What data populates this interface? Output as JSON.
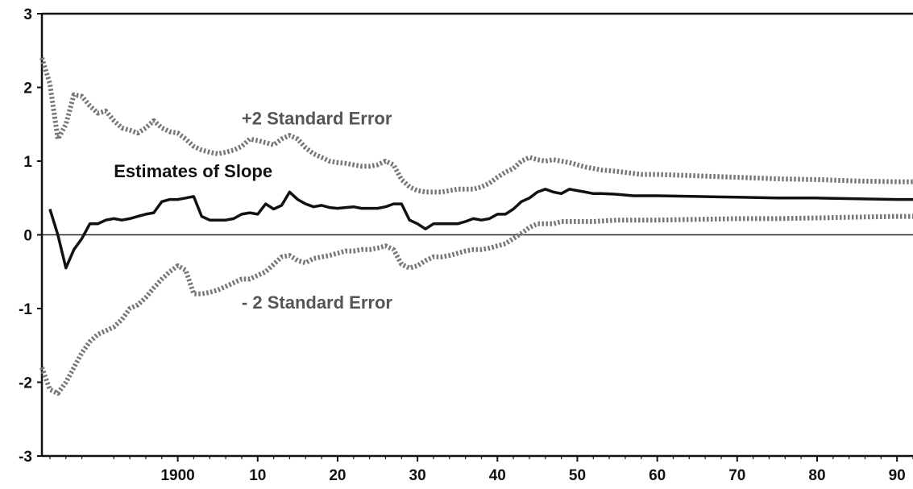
{
  "chart_data": {
    "type": "line",
    "title": "",
    "xlabel": "",
    "ylabel": "",
    "xlim": [
      1883,
      1992
    ],
    "ylim": [
      -3,
      3
    ],
    "x_ticks": [
      {
        "value": 1900,
        "label": "1900"
      },
      {
        "value": 1910,
        "label": "10"
      },
      {
        "value": 1920,
        "label": "20"
      },
      {
        "value": 1930,
        "label": "30"
      },
      {
        "value": 1940,
        "label": "40"
      },
      {
        "value": 1950,
        "label": "50"
      },
      {
        "value": 1960,
        "label": "60"
      },
      {
        "value": 1970,
        "label": "70"
      },
      {
        "value": 1980,
        "label": "80"
      },
      {
        "value": 1990,
        "label": "90"
      }
    ],
    "y_ticks": [
      {
        "value": 3,
        "label": "3"
      },
      {
        "value": 2,
        "label": "2"
      },
      {
        "value": 1,
        "label": "1"
      },
      {
        "value": 0,
        "label": "0"
      },
      {
        "value": -1,
        "label": "-1"
      },
      {
        "value": -2,
        "label": "-2"
      },
      {
        "value": -3,
        "label": "-3"
      }
    ],
    "zero_line": true,
    "grid": false,
    "annotations": [
      {
        "text": "Estimates of Slope",
        "x": 1892,
        "y": 0.78,
        "series": "slope"
      },
      {
        "text": "+2 Standard Error",
        "x": 1908,
        "y": 1.5,
        "series": "upper"
      },
      {
        "text": "- 2 Standard Error",
        "x": 1908,
        "y": -1.0,
        "series": "lower"
      }
    ],
    "series": [
      {
        "key": "slope",
        "style": "solid",
        "color": "#111111",
        "points": [
          [
            1884,
            0.35
          ],
          [
            1885,
            0.0
          ],
          [
            1886,
            -0.45
          ],
          [
            1887,
            -0.2
          ],
          [
            1888,
            -0.05
          ],
          [
            1889,
            0.15
          ],
          [
            1890,
            0.15
          ],
          [
            1891,
            0.2
          ],
          [
            1892,
            0.22
          ],
          [
            1893,
            0.2
          ],
          [
            1894,
            0.22
          ],
          [
            1895,
            0.25
          ],
          [
            1896,
            0.28
          ],
          [
            1897,
            0.3
          ],
          [
            1898,
            0.45
          ],
          [
            1899,
            0.48
          ],
          [
            1900,
            0.48
          ],
          [
            1901,
            0.5
          ],
          [
            1902,
            0.52
          ],
          [
            1903,
            0.25
          ],
          [
            1904,
            0.2
          ],
          [
            1905,
            0.2
          ],
          [
            1906,
            0.2
          ],
          [
            1907,
            0.22
          ],
          [
            1908,
            0.28
          ],
          [
            1909,
            0.3
          ],
          [
            1910,
            0.28
          ],
          [
            1911,
            0.42
          ],
          [
            1912,
            0.35
          ],
          [
            1913,
            0.4
          ],
          [
            1914,
            0.58
          ],
          [
            1915,
            0.48
          ],
          [
            1916,
            0.42
          ],
          [
            1917,
            0.38
          ],
          [
            1918,
            0.4
          ],
          [
            1919,
            0.37
          ],
          [
            1920,
            0.36
          ],
          [
            1921,
            0.37
          ],
          [
            1922,
            0.38
          ],
          [
            1923,
            0.36
          ],
          [
            1924,
            0.36
          ],
          [
            1925,
            0.36
          ],
          [
            1926,
            0.38
          ],
          [
            1927,
            0.42
          ],
          [
            1928,
            0.42
          ],
          [
            1929,
            0.2
          ],
          [
            1930,
            0.15
          ],
          [
            1931,
            0.08
          ],
          [
            1932,
            0.15
          ],
          [
            1933,
            0.15
          ],
          [
            1934,
            0.15
          ],
          [
            1935,
            0.15
          ],
          [
            1936,
            0.18
          ],
          [
            1937,
            0.22
          ],
          [
            1938,
            0.2
          ],
          [
            1939,
            0.22
          ],
          [
            1940,
            0.28
          ],
          [
            1941,
            0.28
          ],
          [
            1942,
            0.35
          ],
          [
            1943,
            0.45
          ],
          [
            1944,
            0.5
          ],
          [
            1945,
            0.58
          ],
          [
            1946,
            0.62
          ],
          [
            1947,
            0.58
          ],
          [
            1948,
            0.56
          ],
          [
            1949,
            0.62
          ],
          [
            1950,
            0.6
          ],
          [
            1951,
            0.58
          ],
          [
            1952,
            0.56
          ],
          [
            1953,
            0.56
          ],
          [
            1955,
            0.55
          ],
          [
            1957,
            0.53
          ],
          [
            1960,
            0.53
          ],
          [
            1965,
            0.52
          ],
          [
            1970,
            0.51
          ],
          [
            1975,
            0.5
          ],
          [
            1980,
            0.5
          ],
          [
            1985,
            0.49
          ],
          [
            1990,
            0.48
          ],
          [
            1992,
            0.48
          ]
        ]
      },
      {
        "key": "upper",
        "style": "dotted",
        "color": "#777777",
        "points": [
          [
            1883,
            2.4
          ],
          [
            1884,
            2.05
          ],
          [
            1885,
            1.3
          ],
          [
            1886,
            1.5
          ],
          [
            1887,
            1.9
          ],
          [
            1888,
            1.88
          ],
          [
            1889,
            1.75
          ],
          [
            1890,
            1.65
          ],
          [
            1891,
            1.68
          ],
          [
            1892,
            1.55
          ],
          [
            1893,
            1.45
          ],
          [
            1894,
            1.42
          ],
          [
            1895,
            1.38
          ],
          [
            1896,
            1.45
          ],
          [
            1897,
            1.55
          ],
          [
            1898,
            1.45
          ],
          [
            1899,
            1.4
          ],
          [
            1900,
            1.38
          ],
          [
            1901,
            1.3
          ],
          [
            1902,
            1.2
          ],
          [
            1903,
            1.15
          ],
          [
            1904,
            1.12
          ],
          [
            1905,
            1.1
          ],
          [
            1906,
            1.12
          ],
          [
            1907,
            1.15
          ],
          [
            1908,
            1.2
          ],
          [
            1909,
            1.3
          ],
          [
            1910,
            1.28
          ],
          [
            1911,
            1.25
          ],
          [
            1912,
            1.22
          ],
          [
            1913,
            1.3
          ],
          [
            1914,
            1.35
          ],
          [
            1915,
            1.3
          ],
          [
            1916,
            1.18
          ],
          [
            1917,
            1.1
          ],
          [
            1918,
            1.05
          ],
          [
            1919,
            1.0
          ],
          [
            1920,
            0.98
          ],
          [
            1921,
            0.97
          ],
          [
            1922,
            0.95
          ],
          [
            1923,
            0.93
          ],
          [
            1924,
            0.93
          ],
          [
            1925,
            0.95
          ],
          [
            1926,
            1.0
          ],
          [
            1927,
            0.95
          ],
          [
            1928,
            0.75
          ],
          [
            1929,
            0.65
          ],
          [
            1930,
            0.6
          ],
          [
            1931,
            0.58
          ],
          [
            1932,
            0.58
          ],
          [
            1933,
            0.58
          ],
          [
            1934,
            0.6
          ],
          [
            1935,
            0.62
          ],
          [
            1936,
            0.62
          ],
          [
            1937,
            0.62
          ],
          [
            1938,
            0.65
          ],
          [
            1939,
            0.7
          ],
          [
            1940,
            0.78
          ],
          [
            1941,
            0.85
          ],
          [
            1942,
            0.9
          ],
          [
            1943,
            1.0
          ],
          [
            1944,
            1.05
          ],
          [
            1945,
            1.02
          ],
          [
            1946,
            1.0
          ],
          [
            1947,
            1.02
          ],
          [
            1948,
            1.0
          ],
          [
            1949,
            0.98
          ],
          [
            1950,
            0.95
          ],
          [
            1951,
            0.92
          ],
          [
            1952,
            0.9
          ],
          [
            1953,
            0.88
          ],
          [
            1955,
            0.86
          ],
          [
            1958,
            0.82
          ],
          [
            1960,
            0.82
          ],
          [
            1965,
            0.8
          ],
          [
            1970,
            0.78
          ],
          [
            1975,
            0.76
          ],
          [
            1980,
            0.75
          ],
          [
            1985,
            0.73
          ],
          [
            1990,
            0.72
          ],
          [
            1992,
            0.72
          ]
        ]
      },
      {
        "key": "lower",
        "style": "dotted",
        "color": "#777777",
        "points": [
          [
            1883,
            -1.8
          ],
          [
            1884,
            -2.1
          ],
          [
            1885,
            -2.15
          ],
          [
            1886,
            -2.0
          ],
          [
            1887,
            -1.8
          ],
          [
            1888,
            -1.6
          ],
          [
            1889,
            -1.45
          ],
          [
            1890,
            -1.35
          ],
          [
            1891,
            -1.3
          ],
          [
            1892,
            -1.25
          ],
          [
            1893,
            -1.15
          ],
          [
            1894,
            -1.0
          ],
          [
            1895,
            -0.95
          ],
          [
            1896,
            -0.85
          ],
          [
            1897,
            -0.72
          ],
          [
            1898,
            -0.6
          ],
          [
            1899,
            -0.5
          ],
          [
            1900,
            -0.42
          ],
          [
            1901,
            -0.48
          ],
          [
            1902,
            -0.8
          ],
          [
            1903,
            -0.8
          ],
          [
            1904,
            -0.78
          ],
          [
            1905,
            -0.75
          ],
          [
            1906,
            -0.7
          ],
          [
            1907,
            -0.65
          ],
          [
            1908,
            -0.6
          ],
          [
            1909,
            -0.6
          ],
          [
            1910,
            -0.55
          ],
          [
            1911,
            -0.5
          ],
          [
            1912,
            -0.4
          ],
          [
            1913,
            -0.3
          ],
          [
            1914,
            -0.28
          ],
          [
            1915,
            -0.35
          ],
          [
            1916,
            -0.38
          ],
          [
            1917,
            -0.32
          ],
          [
            1918,
            -0.3
          ],
          [
            1919,
            -0.28
          ],
          [
            1920,
            -0.25
          ],
          [
            1921,
            -0.22
          ],
          [
            1922,
            -0.22
          ],
          [
            1923,
            -0.2
          ],
          [
            1924,
            -0.2
          ],
          [
            1925,
            -0.18
          ],
          [
            1926,
            -0.15
          ],
          [
            1927,
            -0.2
          ],
          [
            1928,
            -0.4
          ],
          [
            1929,
            -0.45
          ],
          [
            1930,
            -0.42
          ],
          [
            1931,
            -0.35
          ],
          [
            1932,
            -0.3
          ],
          [
            1933,
            -0.3
          ],
          [
            1934,
            -0.28
          ],
          [
            1935,
            -0.25
          ],
          [
            1936,
            -0.22
          ],
          [
            1937,
            -0.2
          ],
          [
            1938,
            -0.2
          ],
          [
            1939,
            -0.18
          ],
          [
            1940,
            -0.15
          ],
          [
            1941,
            -0.12
          ],
          [
            1942,
            -0.05
          ],
          [
            1943,
            0.02
          ],
          [
            1944,
            0.1
          ],
          [
            1945,
            0.15
          ],
          [
            1946,
            0.15
          ],
          [
            1947,
            0.15
          ],
          [
            1948,
            0.18
          ],
          [
            1949,
            0.18
          ],
          [
            1950,
            0.18
          ],
          [
            1952,
            0.18
          ],
          [
            1955,
            0.2
          ],
          [
            1960,
            0.2
          ],
          [
            1965,
            0.21
          ],
          [
            1970,
            0.22
          ],
          [
            1975,
            0.22
          ],
          [
            1980,
            0.23
          ],
          [
            1985,
            0.24
          ],
          [
            1990,
            0.25
          ],
          [
            1992,
            0.25
          ]
        ]
      }
    ]
  }
}
